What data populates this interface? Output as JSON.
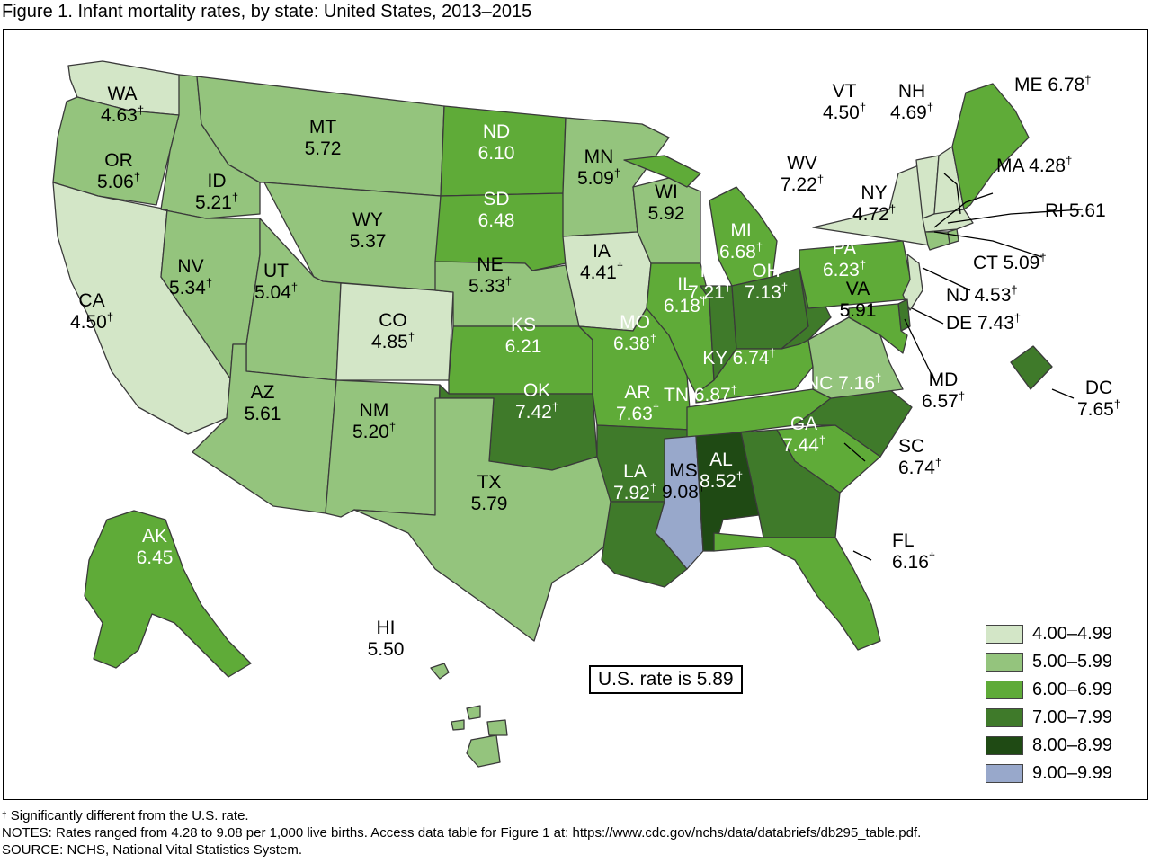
{
  "title": "Figure 1. Infant mortality rates, by state: United States, 2013–2015",
  "us_rate": "U.S. rate is 5.89",
  "dagger": "†",
  "legend": [
    {
      "label": "4.00–4.99",
      "color": "#d3e6c7"
    },
    {
      "label": "5.00–5.99",
      "color": "#94c47d"
    },
    {
      "label": "6.00–6.99",
      "color": "#5fab38"
    },
    {
      "label": "7.00–7.99",
      "color": "#3f7a2a"
    },
    {
      "label": "8.00–8.99",
      "color": "#1f4a14"
    },
    {
      "label": "9.00–9.99",
      "color": "#98a8cb"
    }
  ],
  "states": [
    {
      "abbr": "WA",
      "rate": "4.63",
      "sig": true
    },
    {
      "abbr": "OR",
      "rate": "5.06",
      "sig": true
    },
    {
      "abbr": "CA",
      "rate": "4.50",
      "sig": true
    },
    {
      "abbr": "ID",
      "rate": "5.21",
      "sig": true
    },
    {
      "abbr": "NV",
      "rate": "5.34",
      "sig": true
    },
    {
      "abbr": "MT",
      "rate": "5.72",
      "sig": false
    },
    {
      "abbr": "WY",
      "rate": "5.37",
      "sig": false
    },
    {
      "abbr": "UT",
      "rate": "5.04",
      "sig": true
    },
    {
      "abbr": "AZ",
      "rate": "5.61",
      "sig": false
    },
    {
      "abbr": "CO",
      "rate": "4.85",
      "sig": true
    },
    {
      "abbr": "NM",
      "rate": "5.20",
      "sig": true
    },
    {
      "abbr": "ND",
      "rate": "6.10",
      "sig": false
    },
    {
      "abbr": "SD",
      "rate": "6.48",
      "sig": false
    },
    {
      "abbr": "NE",
      "rate": "5.33",
      "sig": true
    },
    {
      "abbr": "KS",
      "rate": "6.21",
      "sig": false
    },
    {
      "abbr": "OK",
      "rate": "7.42",
      "sig": true
    },
    {
      "abbr": "TX",
      "rate": "5.79",
      "sig": false
    },
    {
      "abbr": "MN",
      "rate": "5.09",
      "sig": true
    },
    {
      "abbr": "IA",
      "rate": "4.41",
      "sig": true
    },
    {
      "abbr": "MO",
      "rate": "6.38",
      "sig": true
    },
    {
      "abbr": "AR",
      "rate": "7.63",
      "sig": true
    },
    {
      "abbr": "LA",
      "rate": "7.92",
      "sig": true
    },
    {
      "abbr": "WI",
      "rate": "5.92",
      "sig": false
    },
    {
      "abbr": "IL",
      "rate": "6.18",
      "sig": true
    },
    {
      "abbr": "MI",
      "rate": "6.68",
      "sig": true
    },
    {
      "abbr": "IN",
      "rate": "7.21",
      "sig": true
    },
    {
      "abbr": "OH",
      "rate": "7.13",
      "sig": true
    },
    {
      "abbr": "KY",
      "rate": "6.74",
      "sig": true
    },
    {
      "abbr": "TN",
      "rate": "6.87",
      "sig": true
    },
    {
      "abbr": "MS",
      "rate": "9.08",
      "sig": true
    },
    {
      "abbr": "AL",
      "rate": "8.52",
      "sig": true
    },
    {
      "abbr": "GA",
      "rate": "7.44",
      "sig": true
    },
    {
      "abbr": "FL",
      "rate": "6.16",
      "sig": true
    },
    {
      "abbr": "SC",
      "rate": "6.74",
      "sig": true
    },
    {
      "abbr": "NC",
      "rate": "7.16",
      "sig": true
    },
    {
      "abbr": "VA",
      "rate": "5.91",
      "sig": false
    },
    {
      "abbr": "WV",
      "rate": "7.22",
      "sig": true
    },
    {
      "abbr": "PA",
      "rate": "6.23",
      "sig": true
    },
    {
      "abbr": "NY",
      "rate": "4.72",
      "sig": true
    },
    {
      "abbr": "VT",
      "rate": "4.50",
      "sig": true
    },
    {
      "abbr": "NH",
      "rate": "4.69",
      "sig": true
    },
    {
      "abbr": "ME",
      "rate": "6.78",
      "sig": true
    },
    {
      "abbr": "MA",
      "rate": "4.28",
      "sig": true
    },
    {
      "abbr": "RI",
      "rate": "5.61",
      "sig": false
    },
    {
      "abbr": "CT",
      "rate": "5.09",
      "sig": true
    },
    {
      "abbr": "NJ",
      "rate": "4.53",
      "sig": true
    },
    {
      "abbr": "DE",
      "rate": "7.43",
      "sig": true
    },
    {
      "abbr": "MD",
      "rate": "6.57",
      "sig": true
    },
    {
      "abbr": "DC",
      "rate": "7.65",
      "sig": true
    },
    {
      "abbr": "AK",
      "rate": "6.45",
      "sig": false
    },
    {
      "abbr": "HI",
      "rate": "5.50",
      "sig": false
    }
  ],
  "footnotes": {
    "significance": "Significantly different from the U.S. rate.",
    "notes": "NOTES: Rates ranged from 4.28 to 9.08 per 1,000 live births. Access data table for Figure 1 at: https://www.cdc.gov/nchs/data/databriefs/db295_table.pdf.",
    "source": "SOURCE: NCHS, National Vital Statistics System."
  }
}
